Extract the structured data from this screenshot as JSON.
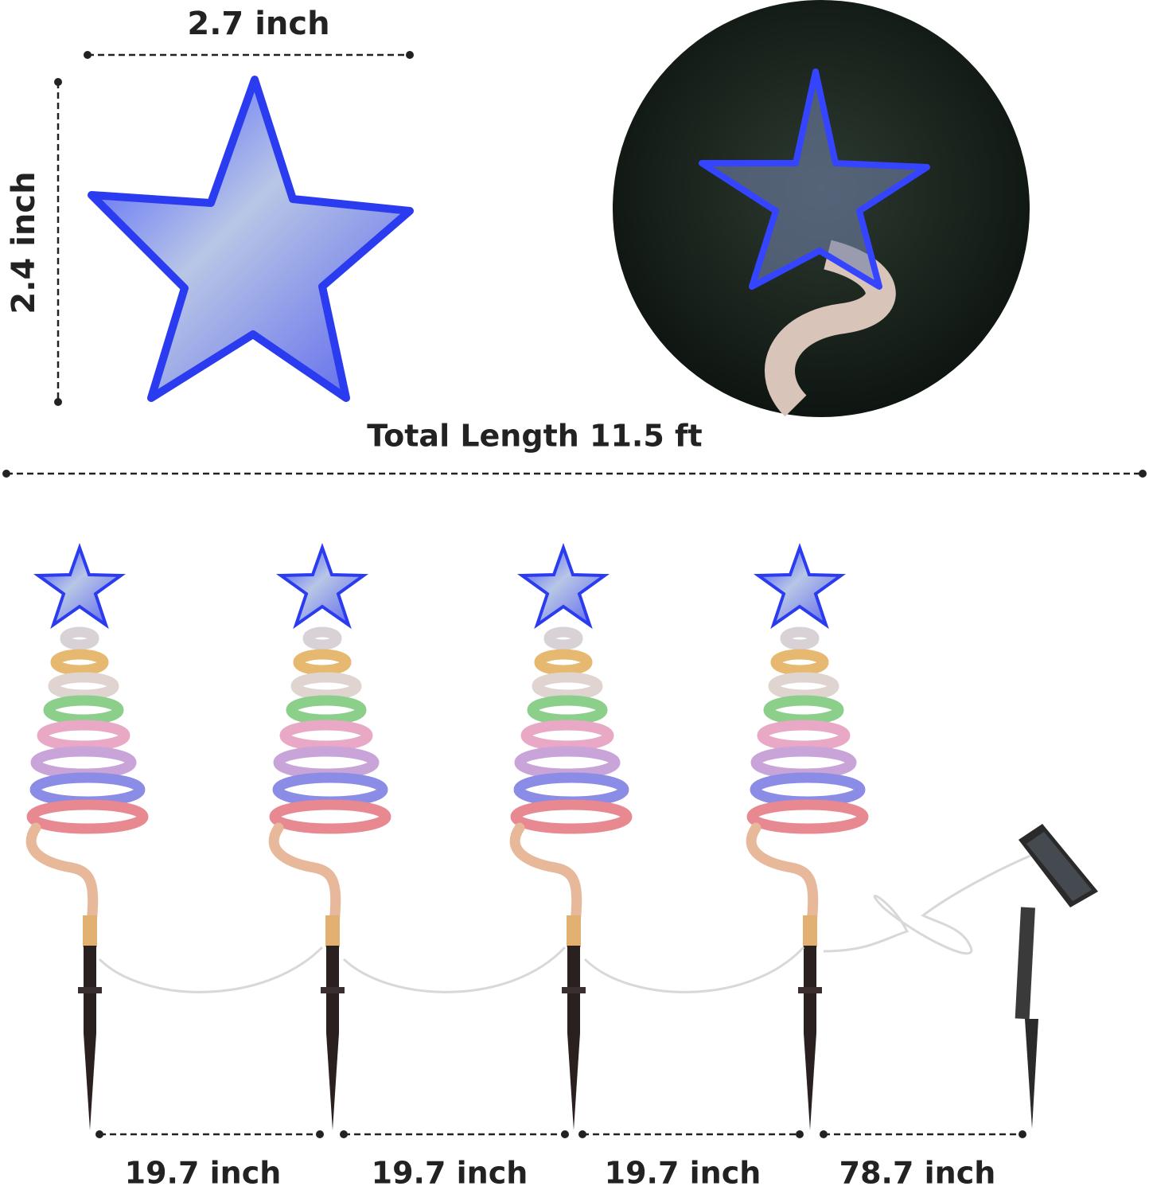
{
  "dimensions": {
    "star_width": "2.7 inch",
    "star_height": "2.4 inch",
    "total_length": "Total Length 11.5 ft",
    "spacings": [
      "19.7 inch",
      "19.7 inch",
      "19.7 inch",
      "78.7 inch"
    ]
  }
}
